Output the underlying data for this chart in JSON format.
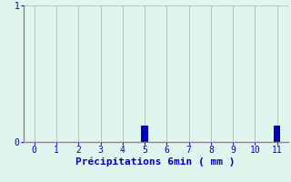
{
  "x_values": [
    0,
    1,
    2,
    3,
    4,
    5,
    6,
    7,
    8,
    9,
    10,
    11
  ],
  "bar_heights": [
    0,
    0,
    0,
    0,
    0,
    0.12,
    0,
    0,
    0,
    0,
    0,
    0.12
  ],
  "bar_color": "#0000bb",
  "background_color": "#dff5ee",
  "grid_color": "#b0c8be",
  "spine_color": "#888888",
  "axis_color": "#0000bb",
  "text_color": "#0000bb",
  "xlabel": "Précipitations 6min ( mm )",
  "ylim": [
    0,
    1
  ],
  "xlim": [
    -0.5,
    11.5
  ],
  "xticks": [
    0,
    1,
    2,
    3,
    4,
    5,
    6,
    7,
    8,
    9,
    10,
    11
  ],
  "yticks": [
    0,
    1
  ],
  "xlabel_fontsize": 8,
  "tick_fontsize": 7,
  "bar_width": 0.3
}
